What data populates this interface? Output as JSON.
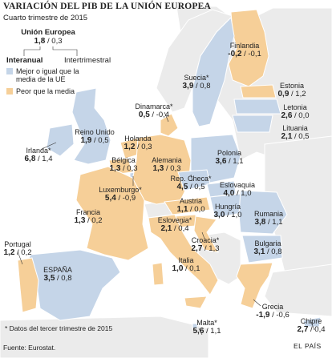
{
  "title": "VARIACIÓN DEL PIB DE LA UNIÓN EUROPEA",
  "subtitle": "Cuarto trimestre de 2015",
  "eu": {
    "name": "Unión Europea",
    "annual": "1,8",
    "quarterly": "0,3"
  },
  "legend": {
    "annual_label": "Interanual",
    "quarterly_label": "Intertrimestral",
    "above": "Mejor o igual que la media de la UE",
    "below": "Peor que la media"
  },
  "colors": {
    "above": "#c5d5e8",
    "below": "#f6cf98",
    "nonmember": "#ebebeb",
    "sea": "#ffffff",
    "border": "#ffffff"
  },
  "countries": [
    {
      "name": "Finlandia",
      "annual": "-0,2",
      "quarterly": "-0,1"
    },
    {
      "name": "Suecia*",
      "annual": "3,9",
      "quarterly": "0,8"
    },
    {
      "name": "Estonia",
      "annual": "0,9",
      "quarterly": "1,2"
    },
    {
      "name": "Letonia",
      "annual": "2,6",
      "quarterly": "0,0"
    },
    {
      "name": "Dinamarca*",
      "annual": "0,5",
      "quarterly": "-0,4"
    },
    {
      "name": "Lituania",
      "annual": "2,1",
      "quarterly": "0,5"
    },
    {
      "name": "Reino Unido",
      "annual": "1,9",
      "quarterly": "0,5"
    },
    {
      "name": "Holanda",
      "annual": "1,2",
      "quarterly": "0,3"
    },
    {
      "name": "Irlanda*",
      "annual": "6,8",
      "quarterly": "1,4"
    },
    {
      "name": "Bélgica",
      "annual": "1,3",
      "quarterly": "0,3"
    },
    {
      "name": "Alemania",
      "annual": "1,3",
      "quarterly": "0,3"
    },
    {
      "name": "Polonia",
      "annual": "3,6",
      "quarterly": "1,1"
    },
    {
      "name": "Luxemburgo*",
      "annual": "5,4",
      "quarterly": "-0,9"
    },
    {
      "name": "Rep. Checa*",
      "annual": "4,5",
      "quarterly": "0,5"
    },
    {
      "name": "Eslovaquia",
      "annual": "4,0",
      "quarterly": "1,0"
    },
    {
      "name": "Austria",
      "annual": "1,1",
      "quarterly": "0,0"
    },
    {
      "name": "Hungría",
      "annual": "3,0",
      "quarterly": "1,0"
    },
    {
      "name": "Francia",
      "annual": "1,3",
      "quarterly": "0,2"
    },
    {
      "name": "Eslovenia*",
      "annual": "2,1",
      "quarterly": "0,4"
    },
    {
      "name": "Rumania",
      "annual": "3,8",
      "quarterly": "1,1"
    },
    {
      "name": "Croacia*",
      "annual": "2,7",
      "quarterly": "1,3"
    },
    {
      "name": "Bulgaria",
      "annual": "3,1",
      "quarterly": "0,8"
    },
    {
      "name": "Portugal",
      "annual": "1,2",
      "quarterly": "0,2"
    },
    {
      "name": "Italia",
      "annual": "1,0",
      "quarterly": "0,1"
    },
    {
      "name": "ESPAÑA",
      "annual": "3,5",
      "quarterly": "0,8"
    },
    {
      "name": "Grecia",
      "annual": "-1,9",
      "quarterly": "-0,6"
    },
    {
      "name": "Malta*",
      "annual": "5,6",
      "quarterly": "1,1"
    },
    {
      "name": "Chipre",
      "annual": "2,7",
      "quarterly": "0,4"
    }
  ],
  "footnote": "* Datos del tercer trimestre de 2015",
  "source": "Fuente: Eurostat.",
  "credit": "EL PAÍS"
}
